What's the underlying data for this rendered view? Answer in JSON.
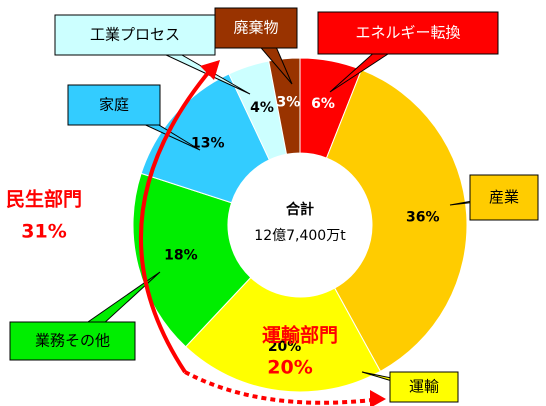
{
  "chart_data": {
    "type": "pie",
    "categories": [
      "エネルギー転換",
      "産業",
      "運輸",
      "業務その他",
      "家庭",
      "工業プロセス",
      "廃棄物"
    ],
    "values": [
      6,
      36,
      20,
      18,
      13,
      4,
      3
    ],
    "value_labels": [
      "6%",
      "36%",
      "20%",
      "18%",
      "13%",
      "4%",
      "3%"
    ],
    "colors": [
      "#ff0000",
      "#ffcc00",
      "#ffff00",
      "#00ee00",
      "#33ccff",
      "#ccffff",
      "#993300"
    ],
    "center_title": "合計",
    "center_value": "12億7,400万t",
    "annotations": [
      {
        "label": "民生部門",
        "value_label": "31%"
      },
      {
        "label": "運輸部門",
        "value_label": "20%"
      }
    ]
  }
}
